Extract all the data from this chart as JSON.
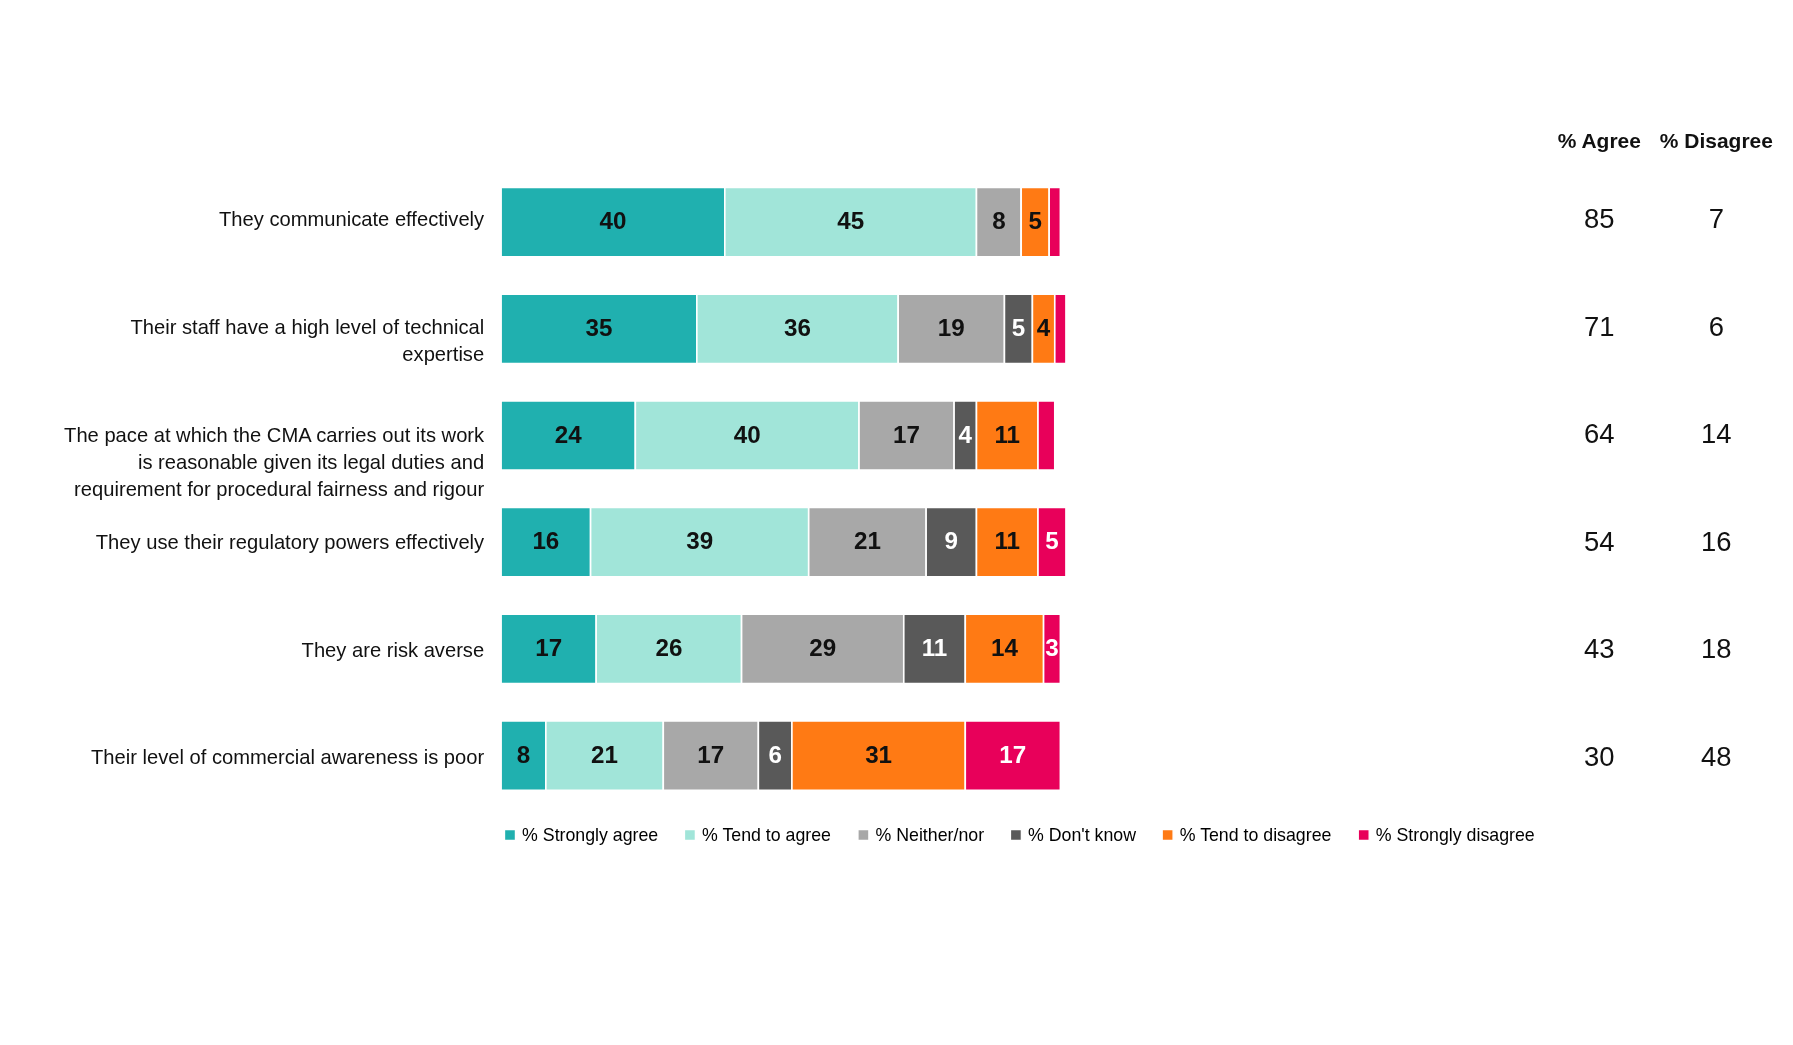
{
  "chart_data": {
    "type": "bar",
    "orientation": "horizontal",
    "stacked": true,
    "categories": [
      "They communicate effectively",
      "Their staff have a high level of technical expertise",
      "The pace at which the CMA carries out its work is reasonable given its legal duties and requirement for procedural fairness and rigour",
      "They use their regulatory powers effectively",
      "They are risk averse",
      "Their level of commercial awareness is poor"
    ],
    "series": [
      {
        "name": "% Strongly agree",
        "color": "#20b0af",
        "values": [
          40,
          35,
          24,
          16,
          17,
          8
        ],
        "value_labels": [
          "40",
          "35",
          "24",
          "16",
          "17",
          "8"
        ]
      },
      {
        "name": "% Tend to agree",
        "color": "#a1e5d9",
        "values": [
          45,
          36,
          40,
          39,
          26,
          21
        ],
        "value_labels": [
          "45",
          "36",
          "40",
          "39",
          "26",
          "21"
        ]
      },
      {
        "name": "% Neither/nor",
        "color": "#a8a8a8",
        "values": [
          8,
          19,
          17,
          21,
          29,
          17
        ],
        "value_labels": [
          "8",
          "19",
          "17",
          "21",
          "29",
          "17"
        ]
      },
      {
        "name": "% Don't know",
        "color": "#595959",
        "values": [
          0,
          5,
          4,
          9,
          11,
          6
        ],
        "value_labels": [
          null,
          "5",
          "4",
          "9",
          "11",
          "6"
        ]
      },
      {
        "name": "% Tend to disagree",
        "color": "#ff7a14",
        "values": [
          5,
          4,
          11,
          11,
          14,
          31
        ],
        "value_labels": [
          "5",
          "4",
          "11",
          "11",
          "14",
          "31"
        ]
      },
      {
        "name": "% Strongly disagree",
        "color": "#e8005a",
        "values": [
          2,
          2,
          3,
          5,
          3,
          17
        ],
        "value_labels": [
          null,
          null,
          null,
          "5",
          "3",
          "17"
        ]
      }
    ],
    "annotations": [
      "% Agree",
      "% Disagree",
      "85",
      "7",
      "71",
      "6",
      "64",
      "14",
      "54",
      "16",
      "43",
      "18",
      "30",
      "48"
    ],
    "legend": "bottom"
  }
}
